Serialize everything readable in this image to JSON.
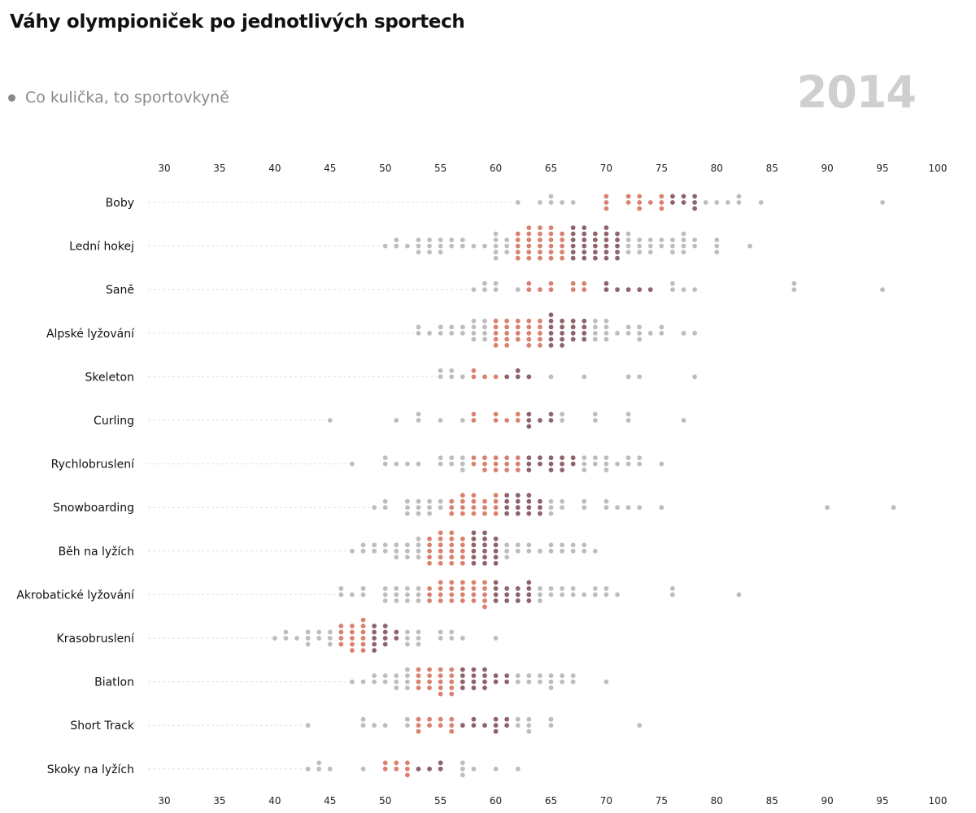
{
  "title": "Váhy olympioniček po jednotlivých sportech",
  "legend": {
    "label": "Co kulička, to sportovkyně"
  },
  "year": "2014",
  "colors": {
    "outside": "#bdbdbd",
    "lower_mid": "#d9826f",
    "upper_mid": "#8e636c",
    "guide": "#dddddd",
    "legend_text": "#8a8a8a",
    "year_text": "#cfcfcf"
  },
  "chart_data": {
    "type": "scatter",
    "variant": "beeswarm",
    "xlim": [
      30,
      100
    ],
    "xticks": [
      30,
      35,
      40,
      45,
      50,
      55,
      60,
      65,
      70,
      75,
      80,
      85,
      90,
      95,
      100
    ],
    "xaxis_positions": [
      "top",
      "bottom"
    ],
    "grid": false,
    "sports": [
      {
        "name": "Boby",
        "weights": [
          62,
          64,
          65,
          65,
          66,
          67,
          70,
          70,
          70,
          72,
          72,
          73,
          73,
          73,
          74,
          75,
          75,
          75,
          76,
          76,
          77,
          77,
          78,
          78,
          78,
          79,
          80,
          81,
          82,
          82,
          84,
          95
        ]
      },
      {
        "name": "Lední hokej",
        "weights": [
          50,
          51,
          51,
          52,
          53,
          53,
          53,
          54,
          54,
          54,
          55,
          55,
          55,
          56,
          56,
          57,
          57,
          58,
          59,
          60,
          60,
          60,
          60,
          60,
          61,
          61,
          61,
          62,
          62,
          62,
          62,
          62,
          63,
          63,
          63,
          63,
          63,
          63,
          63,
          64,
          64,
          64,
          64,
          64,
          64,
          65,
          65,
          65,
          65,
          65,
          65,
          66,
          66,
          66,
          66,
          66,
          67,
          67,
          67,
          67,
          67,
          67,
          68,
          68,
          68,
          68,
          68,
          68,
          69,
          69,
          69,
          69,
          69,
          70,
          70,
          70,
          70,
          70,
          70,
          71,
          71,
          71,
          71,
          71,
          72,
          72,
          72,
          72,
          73,
          73,
          73,
          74,
          74,
          74,
          75,
          75,
          76,
          76,
          76,
          77,
          77,
          77,
          77,
          78,
          78,
          80,
          80,
          80,
          83
        ]
      },
      {
        "name": "Saně",
        "weights": [
          58,
          59,
          59,
          60,
          60,
          62,
          63,
          63,
          64,
          65,
          65,
          67,
          67,
          68,
          68,
          70,
          70,
          71,
          72,
          73,
          74,
          76,
          76,
          77,
          78,
          87,
          87,
          95
        ]
      },
      {
        "name": "Alpské lyžování",
        "weights": [
          53,
          53,
          54,
          55,
          55,
          56,
          56,
          57,
          57,
          58,
          58,
          58,
          58,
          59,
          59,
          59,
          59,
          60,
          60,
          60,
          60,
          60,
          61,
          61,
          61,
          61,
          61,
          62,
          62,
          62,
          62,
          63,
          63,
          63,
          63,
          63,
          64,
          64,
          64,
          64,
          64,
          65,
          65,
          65,
          65,
          65,
          65,
          66,
          66,
          66,
          66,
          66,
          67,
          67,
          67,
          67,
          68,
          68,
          68,
          68,
          69,
          69,
          69,
          69,
          70,
          70,
          70,
          70,
          71,
          72,
          72,
          73,
          73,
          73,
          74,
          75,
          75,
          77,
          78
        ]
      },
      {
        "name": "Skeleton",
        "weights": [
          55,
          55,
          56,
          56,
          57,
          58,
          58,
          59,
          60,
          61,
          62,
          62,
          63,
          65,
          68,
          72,
          73,
          78
        ]
      },
      {
        "name": "Curling",
        "weights": [
          45,
          51,
          53,
          53,
          55,
          57,
          58,
          58,
          60,
          60,
          61,
          62,
          62,
          63,
          63,
          63,
          64,
          65,
          65,
          66,
          66,
          69,
          69,
          72,
          72,
          77
        ]
      },
      {
        "name": "Rychlobruslení",
        "weights": [
          47,
          50,
          50,
          51,
          52,
          53,
          55,
          55,
          56,
          56,
          57,
          57,
          57,
          58,
          58,
          59,
          59,
          59,
          60,
          60,
          60,
          61,
          61,
          61,
          62,
          62,
          62,
          63,
          63,
          63,
          64,
          64,
          65,
          65,
          65,
          66,
          66,
          66,
          67,
          67,
          68,
          68,
          68,
          69,
          69,
          70,
          70,
          70,
          71,
          72,
          72,
          73,
          73,
          75
        ]
      },
      {
        "name": "Snowboarding",
        "weights": [
          49,
          50,
          50,
          52,
          52,
          52,
          53,
          53,
          53,
          54,
          54,
          54,
          55,
          55,
          56,
          56,
          56,
          57,
          57,
          57,
          57,
          58,
          58,
          58,
          58,
          59,
          59,
          59,
          60,
          60,
          60,
          60,
          61,
          61,
          61,
          61,
          62,
          62,
          62,
          62,
          63,
          63,
          63,
          63,
          64,
          64,
          64,
          65,
          65,
          65,
          66,
          66,
          68,
          68,
          70,
          70,
          71,
          72,
          73,
          75,
          90,
          96
        ]
      },
      {
        "name": "Běh na lyžích",
        "weights": [
          47,
          48,
          48,
          49,
          49,
          50,
          50,
          51,
          51,
          51,
          52,
          52,
          52,
          53,
          53,
          53,
          53,
          54,
          54,
          54,
          54,
          54,
          55,
          55,
          55,
          55,
          55,
          55,
          56,
          56,
          56,
          56,
          56,
          56,
          57,
          57,
          57,
          57,
          57,
          58,
          58,
          58,
          58,
          58,
          58,
          59,
          59,
          59,
          59,
          59,
          59,
          60,
          60,
          60,
          60,
          60,
          61,
          61,
          61,
          62,
          62,
          63,
          63,
          64,
          65,
          65,
          66,
          66,
          67,
          67,
          68,
          68,
          69
        ]
      },
      {
        "name": "Akrobatické lyžování",
        "weights": [
          46,
          46,
          47,
          48,
          48,
          50,
          50,
          50,
          51,
          51,
          51,
          52,
          52,
          52,
          53,
          53,
          53,
          54,
          54,
          54,
          55,
          55,
          55,
          55,
          56,
          56,
          56,
          56,
          57,
          57,
          57,
          57,
          58,
          58,
          58,
          58,
          59,
          59,
          59,
          59,
          59,
          60,
          60,
          60,
          60,
          61,
          61,
          61,
          62,
          62,
          62,
          63,
          63,
          63,
          63,
          64,
          64,
          64,
          65,
          65,
          66,
          66,
          67,
          67,
          68,
          69,
          69,
          70,
          70,
          71,
          76,
          76,
          82
        ]
      },
      {
        "name": "Krasobruslení",
        "weights": [
          40,
          41,
          41,
          42,
          43,
          43,
          43,
          44,
          44,
          45,
          45,
          45,
          46,
          46,
          46,
          46,
          47,
          47,
          47,
          47,
          47,
          48,
          48,
          48,
          48,
          48,
          48,
          49,
          49,
          49,
          49,
          49,
          50,
          50,
          50,
          50,
          51,
          51,
          52,
          52,
          52,
          53,
          53,
          53,
          55,
          55,
          56,
          56,
          57,
          60
        ]
      },
      {
        "name": "Biatlon",
        "weights": [
          47,
          48,
          49,
          49,
          50,
          50,
          51,
          51,
          51,
          52,
          52,
          52,
          52,
          53,
          53,
          53,
          53,
          54,
          54,
          54,
          54,
          55,
          55,
          55,
          55,
          55,
          56,
          56,
          56,
          56,
          56,
          57,
          57,
          57,
          57,
          58,
          58,
          58,
          58,
          59,
          59,
          59,
          59,
          60,
          60,
          61,
          61,
          62,
          62,
          63,
          63,
          64,
          64,
          65,
          65,
          65,
          66,
          66,
          67,
          67,
          70
        ]
      },
      {
        "name": "Short Track",
        "weights": [
          43,
          48,
          48,
          49,
          50,
          52,
          52,
          53,
          53,
          53,
          54,
          54,
          55,
          55,
          56,
          56,
          56,
          57,
          58,
          58,
          59,
          60,
          60,
          60,
          61,
          61,
          62,
          62,
          63,
          63,
          63,
          65,
          65,
          73
        ]
      },
      {
        "name": "Skoky na lyžích",
        "weights": [
          43,
          44,
          44,
          45,
          48,
          50,
          50,
          51,
          51,
          52,
          52,
          52,
          53,
          54,
          55,
          55,
          57,
          57,
          57,
          58,
          60,
          62
        ]
      }
    ]
  }
}
